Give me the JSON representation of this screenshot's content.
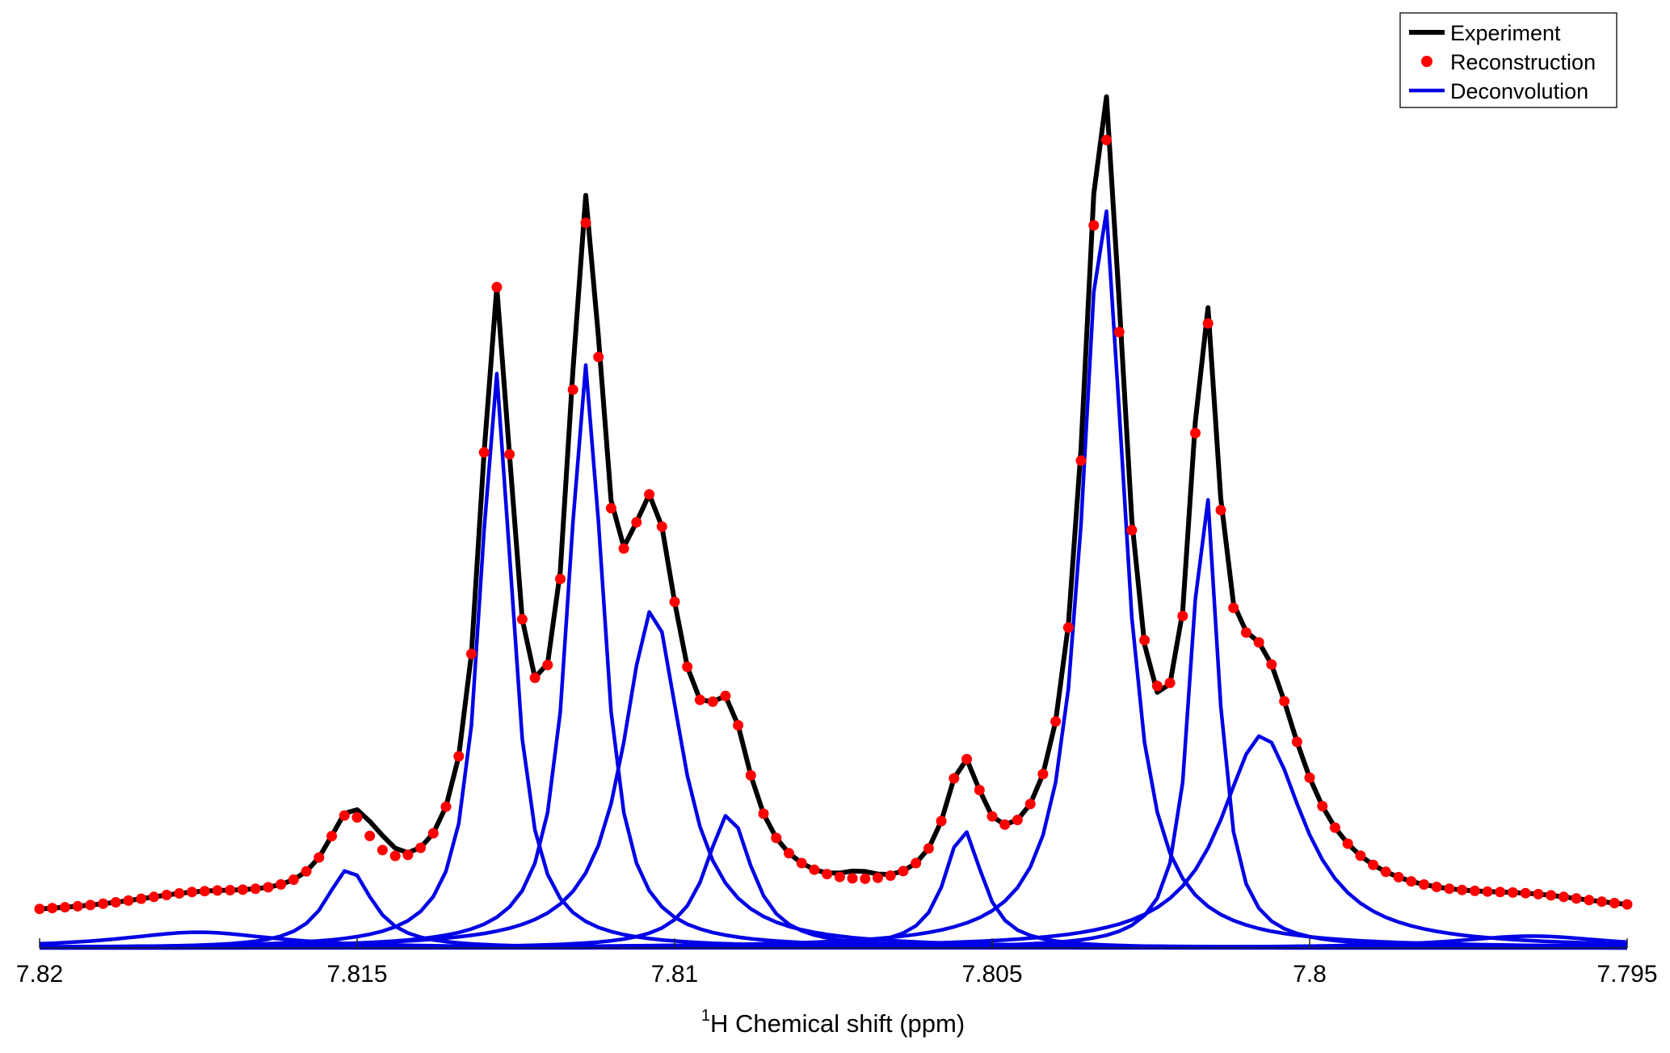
{
  "chart_data": {
    "type": "line",
    "xlabel_superscript": "1",
    "xlabel_main": "H Chemical shift (ppm)",
    "xlabel": "1H Chemical shift (ppm)",
    "ylabel": "",
    "xlim": [
      7.82,
      7.795
    ],
    "x_reversed": true,
    "ylim": [
      0,
      1.06
    ],
    "grid": false,
    "legend_position": "top-right",
    "x_ticks": [
      {
        "value": 7.82,
        "label": "7.82"
      },
      {
        "value": 7.815,
        "label": "7.815"
      },
      {
        "value": 7.81,
        "label": "7.81"
      },
      {
        "value": 7.805,
        "label": "7.805"
      },
      {
        "value": 7.8,
        "label": "7.8"
      },
      {
        "value": 7.795,
        "label": "7.795"
      }
    ],
    "legend": [
      {
        "key": "experiment",
        "label": "Experiment",
        "style": "line",
        "color": "#000000"
      },
      {
        "key": "reconstruction",
        "label": "Reconstruction",
        "style": "dots",
        "color": "#ff0000"
      },
      {
        "key": "deconvolution",
        "label": "Deconvolution",
        "style": "line",
        "color": "#0000e6"
      }
    ],
    "sampling": {
      "start": 7.82,
      "step": -0.0002,
      "count": 126
    },
    "baseline_offset": 0.038,
    "experiment_peak_excess": [
      {
        "center": 7.8147,
        "amplitude": 0.02,
        "width": 0.00025
      },
      {
        "center": 7.8114,
        "amplitude": 0.035,
        "width": 0.00025
      },
      {
        "center": 7.8071,
        "amplitude": 0.01,
        "width": 0.00025
      },
      {
        "center": 7.8032,
        "amplitude": 0.055,
        "width": 0.00025
      },
      {
        "center": 7.8016,
        "amplitude": 0.02,
        "width": 0.00025
      },
      {
        "center": 7.8025,
        "amplitude": -0.01,
        "width": 0.00018
      }
    ],
    "components": [
      {
        "name": "",
        "center": 7.81513,
        "amplitude": 0.1,
        "halfwidth": 0.00045
      },
      {
        "name": "",
        "center": 7.81281,
        "amplitude": 0.73,
        "halfwidth": 0.00031
      },
      {
        "name": "",
        "center": 7.8114,
        "amplitude": 0.74,
        "halfwidth": 0.00033
      },
      {
        "name": "",
        "center": 7.81035,
        "amplitude": 0.43,
        "halfwidth": 0.00056
      },
      {
        "name": "",
        "center": 7.80915,
        "amplitude": 0.17,
        "halfwidth": 0.00044
      },
      {
        "name": "",
        "center": 7.80545,
        "amplitude": 0.15,
        "halfwidth": 0.00036
      },
      {
        "name": "",
        "center": 7.80325,
        "amplitude": 0.95,
        "halfwidth": 0.0004
      },
      {
        "name": "",
        "center": 7.80165,
        "amplitude": 0.59,
        "halfwidth": 0.00026
      },
      {
        "name": "",
        "center": 7.80075,
        "amplitude": 0.27,
        "halfwidth": 0.0008
      },
      {
        "name": "",
        "center": 7.8175,
        "amplitude": 0.02,
        "halfwidth": 0.0015
      },
      {
        "name": "",
        "center": 7.7965,
        "amplitude": 0.015,
        "halfwidth": 0.0015
      }
    ]
  }
}
